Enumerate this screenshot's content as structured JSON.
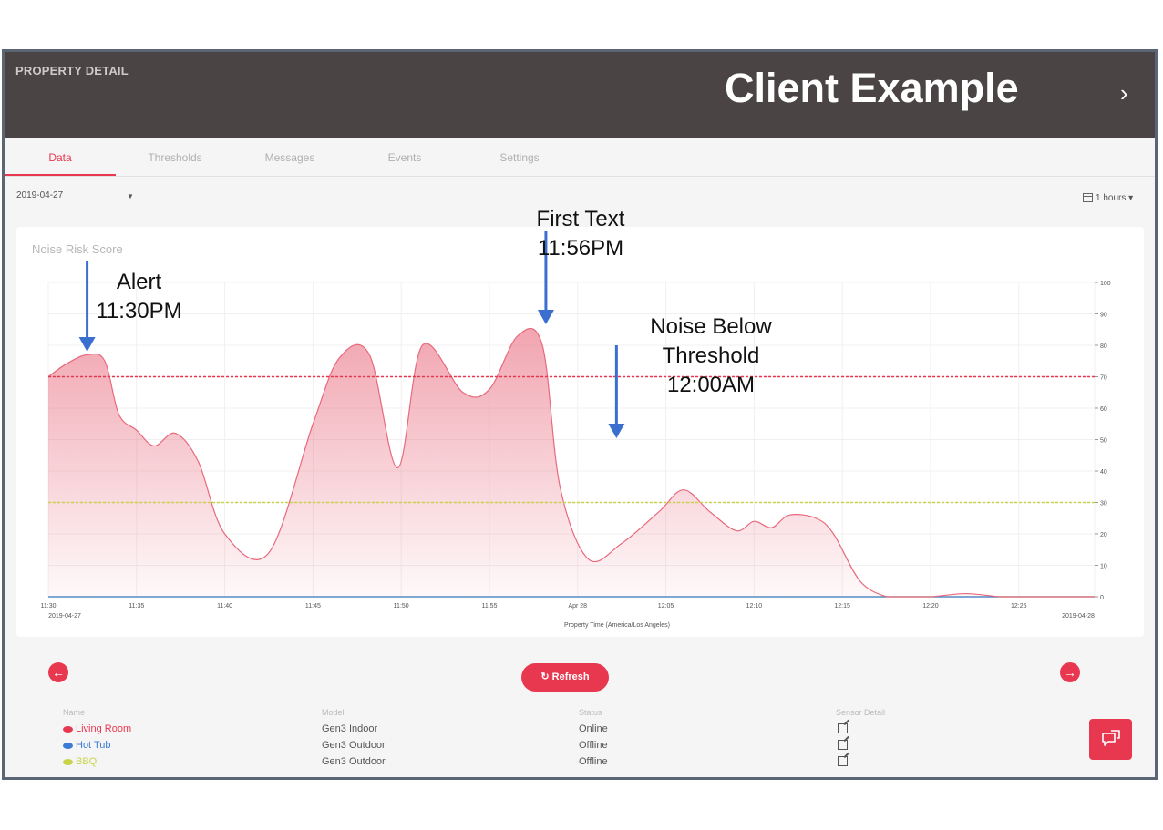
{
  "header": {
    "title": "PROPERTY DETAIL",
    "overlay_label": "Client Example",
    "chevron": "›"
  },
  "tabs": [
    {
      "label": "Data",
      "active": true
    },
    {
      "label": "Thresholds",
      "active": false
    },
    {
      "label": "Messages",
      "active": false
    },
    {
      "label": "Events",
      "active": false
    },
    {
      "label": "Settings",
      "active": false
    }
  ],
  "toolbar": {
    "date": "2019-04-27",
    "range": "1 hours ▾"
  },
  "annotations": {
    "alert": {
      "line1": "Alert",
      "line2": "11:30PM"
    },
    "first_text": {
      "line1": "First Text",
      "line2": "11:56PM"
    },
    "below": {
      "line1": "Noise Below",
      "line2": "Threshold",
      "line3": "12:00AM"
    }
  },
  "chart_data": {
    "type": "area",
    "title": "Noise Risk Score",
    "xlabel": "Property Time (America/Los Angeles)",
    "ylabel": "",
    "ylim": [
      0,
      100
    ],
    "yticks": [
      0,
      10,
      20,
      30,
      40,
      50,
      60,
      70,
      80,
      90,
      100
    ],
    "xtick_labels": [
      {
        "minute": 0,
        "label": "11:30",
        "sub": "2019-04-27"
      },
      {
        "minute": 5,
        "label": "11:35"
      },
      {
        "minute": 10,
        "label": "11:40"
      },
      {
        "minute": 15,
        "label": "11:45"
      },
      {
        "minute": 20,
        "label": "11:50"
      },
      {
        "minute": 25,
        "label": "11:55"
      },
      {
        "minute": 30,
        "label": "Apr 28"
      },
      {
        "minute": 35,
        "label": "12:05"
      },
      {
        "minute": 40,
        "label": "12:10"
      },
      {
        "minute": 45,
        "label": "12:15"
      },
      {
        "minute": 50,
        "label": "12:20"
      },
      {
        "minute": 55,
        "label": "12:25"
      },
      {
        "minute": 59.3,
        "label": "",
        "sub": "2019-04-28"
      }
    ],
    "xlim": [
      0,
      59.3
    ],
    "thresholds": [
      {
        "value": 70,
        "color": "#e8384f"
      },
      {
        "value": 30,
        "color": "#c9d34a"
      }
    ],
    "series": [
      {
        "name": "Living Room",
        "color": "#e8697c",
        "x": [
          0,
          1,
          2.2,
          3.2,
          4,
          5,
          6,
          7.2,
          8.5,
          10,
          12.5,
          15,
          16.5,
          18.2,
          19.8,
          21.2,
          23.5,
          25,
          26.6,
          28,
          29,
          30.6,
          32.5,
          34.6,
          36,
          37.5,
          39,
          40,
          41,
          42,
          43.5,
          44.5,
          46,
          47.5,
          48.5,
          50,
          52,
          54,
          56,
          59.3
        ],
        "y": [
          70,
          74,
          77,
          75,
          58,
          53,
          48,
          52,
          43,
          20,
          14,
          55,
          76,
          77,
          41,
          80,
          65,
          66,
          83,
          80,
          35,
          12,
          17,
          27,
          34,
          27,
          21,
          24,
          22,
          26,
          25,
          20,
          5,
          0,
          0,
          0,
          1,
          0,
          0,
          0
        ]
      },
      {
        "name": "Hot Tub",
        "color": "#3a7bd5",
        "x": [
          0,
          59.3
        ],
        "y": [
          0,
          0
        ]
      },
      {
        "name": "BBQ",
        "color": "#c9d34a",
        "x": [
          0,
          59.3
        ],
        "y": [
          0,
          0
        ]
      }
    ],
    "legend": "none",
    "grid": true
  },
  "refresh_label": "Refresh",
  "prev_icon": "←",
  "next_icon": "→",
  "table": {
    "headers": [
      "Name",
      "Model",
      "Status",
      "Sensor Detail"
    ],
    "rows": [
      {
        "name": "Living Room",
        "model": "Gen3 Indoor",
        "status": "Online",
        "color": "#e8384f"
      },
      {
        "name": "Hot Tub",
        "model": "Gen3 Outdoor",
        "status": "Offline",
        "color": "#3a7bd5"
      },
      {
        "name": "BBQ",
        "model": "Gen3 Outdoor",
        "status": "Offline",
        "color": "#c9d34a"
      }
    ]
  }
}
